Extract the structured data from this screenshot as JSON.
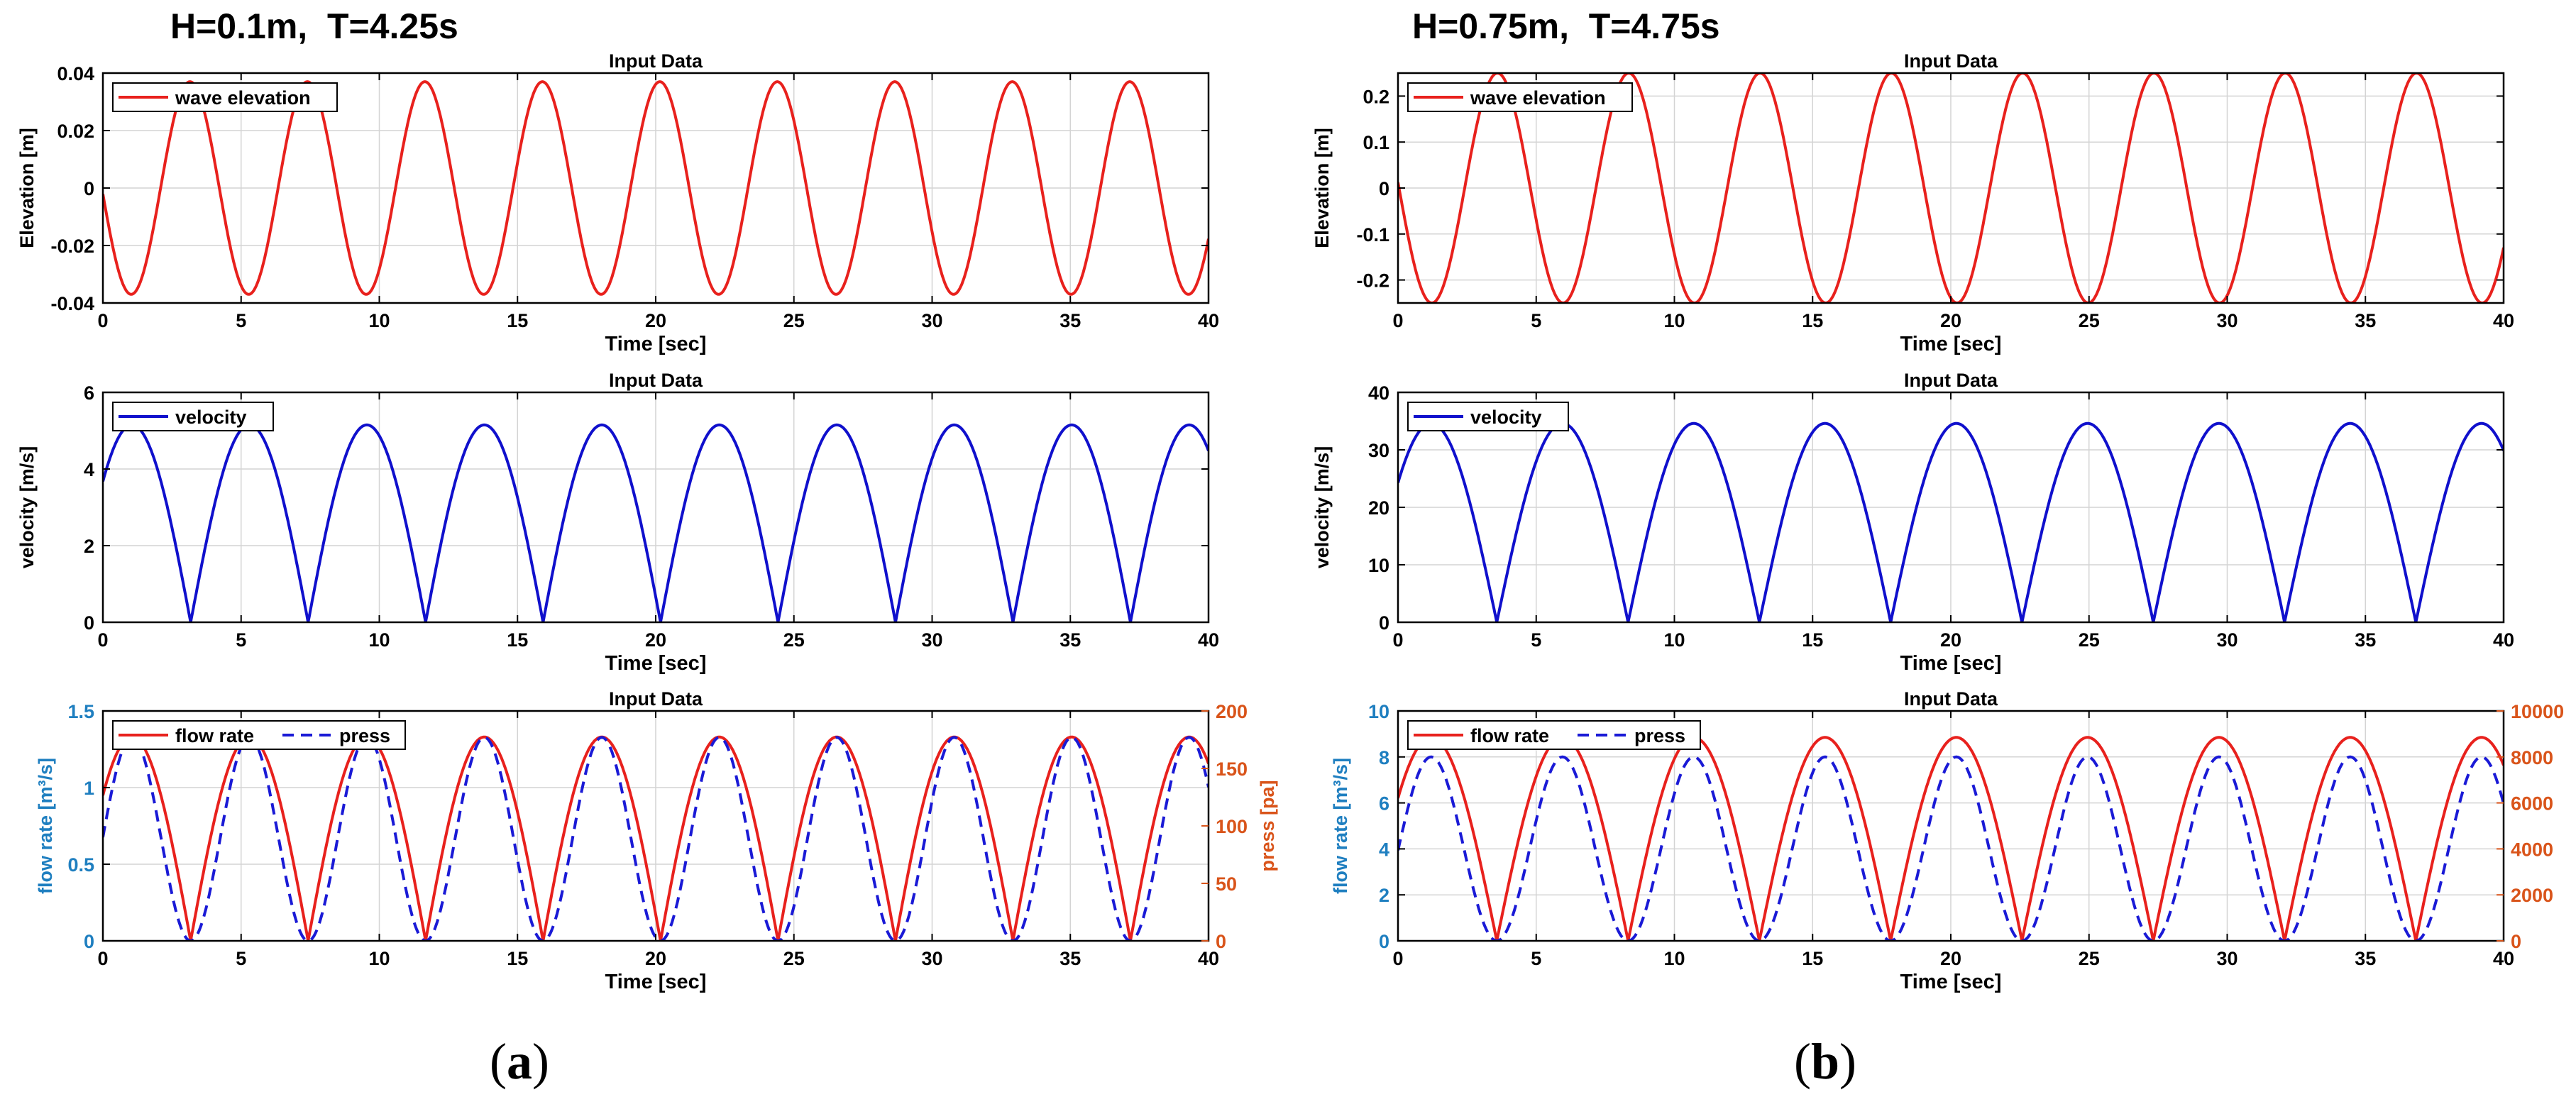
{
  "panels": [
    {
      "id": "a",
      "heading": "H=0.1m,  T=4.25s",
      "label": "a"
    },
    {
      "id": "b",
      "heading": "H=0.75m,  T=4.75s",
      "label": "b"
    }
  ],
  "colors": {
    "wave": "#e8211d",
    "velocity": "#1010cc",
    "flow": "#e8211d",
    "press": "#1a1ad6",
    "left_axis_label": "#1f7fc0",
    "right_axis": "#d9541a",
    "grid": "#d4d4d4"
  },
  "chart_data": [
    {
      "panel": "a",
      "row": 1,
      "type": "line",
      "title": "Input Data",
      "xlabel": "Time [sec]",
      "ylabel": "Elevation [m]",
      "xlim": [
        0,
        40
      ],
      "ylim": [
        -0.04,
        0.04
      ],
      "xticks": [
        0,
        5,
        10,
        15,
        20,
        25,
        30,
        35,
        40
      ],
      "xtick_labels": [
        "0",
        "5",
        "10",
        "15",
        "20",
        "25",
        "30",
        "35",
        "40"
      ],
      "yticks": [
        -0.04,
        -0.02,
        0,
        0.02,
        0.04
      ],
      "ytick_labels": [
        "-0.04",
        "-0.02",
        "0",
        "0.02",
        "0.04"
      ],
      "legend": [
        "wave elevation"
      ],
      "legend_position": "top-left",
      "series": [
        {
          "name": "wave elevation",
          "kind": "sine",
          "amplitude": 0.037,
          "period_s": 4.25,
          "first_peak_s": 3.15,
          "style": "solid"
        }
      ]
    },
    {
      "panel": "a",
      "row": 2,
      "type": "line",
      "title": "Input Data",
      "xlabel": "Time [sec]",
      "ylabel": "velocity [m/s]",
      "xlim": [
        0,
        40
      ],
      "ylim": [
        0,
        6
      ],
      "xticks": [
        0,
        5,
        10,
        15,
        20,
        25,
        30,
        35,
        40
      ],
      "xtick_labels": [
        "0",
        "5",
        "10",
        "15",
        "20",
        "25",
        "30",
        "35",
        "40"
      ],
      "yticks": [
        0,
        2,
        4,
        6
      ],
      "ytick_labels": [
        "0",
        "2",
        "4",
        "6"
      ],
      "legend": [
        "velocity"
      ],
      "legend_position": "top-left",
      "series": [
        {
          "name": "velocity",
          "kind": "abs-sine",
          "amplitude": 5.15,
          "period_s": 4.25,
          "first_peak_s": 1.05,
          "style": "solid"
        }
      ]
    },
    {
      "panel": "a",
      "row": 3,
      "type": "line",
      "title": "Input Data",
      "xlabel": "Time [sec]",
      "ylabel": "flow rate [m³/s]",
      "ylabel_right": "press [pa]",
      "xlim": [
        0,
        40
      ],
      "ylim": [
        0,
        1.5
      ],
      "ylim_right": [
        0,
        200
      ],
      "xticks": [
        0,
        5,
        10,
        15,
        20,
        25,
        30,
        35,
        40
      ],
      "xtick_labels": [
        "0",
        "5",
        "10",
        "15",
        "20",
        "25",
        "30",
        "35",
        "40"
      ],
      "yticks": [
        0,
        0.5,
        1,
        1.5
      ],
      "ytick_labels": [
        "0",
        "0.5",
        "1",
        "1.5"
      ],
      "yticks_right": [
        0,
        50,
        100,
        150,
        200
      ],
      "ytick_labels_right": [
        "0",
        "50",
        "100",
        "150",
        "200"
      ],
      "legend": [
        "flow rate",
        "press"
      ],
      "legend_position": "top-left",
      "series": [
        {
          "name": "flow rate",
          "kind": "abs-sine",
          "amplitude": 1.33,
          "period_s": 4.25,
          "first_peak_s": 1.05,
          "axis": "left",
          "style": "solid"
        },
        {
          "name": "press",
          "kind": "sine-squared",
          "amplitude": 177,
          "period_s": 4.25,
          "first_peak_s": 1.05,
          "axis": "right",
          "style": "dashed"
        }
      ]
    },
    {
      "panel": "b",
      "row": 1,
      "type": "line",
      "title": "Input Data",
      "xlabel": "Time [sec]",
      "ylabel": "Elevation [m]",
      "xlim": [
        0,
        40
      ],
      "ylim": [
        -0.25,
        0.25
      ],
      "xticks": [
        0,
        5,
        10,
        15,
        20,
        25,
        30,
        35,
        40
      ],
      "xtick_labels": [
        "0",
        "5",
        "10",
        "15",
        "20",
        "25",
        "30",
        "35",
        "40"
      ],
      "yticks": [
        -0.2,
        -0.1,
        0,
        0.1,
        0.2
      ],
      "ytick_labels": [
        "-0.2",
        "-0.1",
        "0",
        "0.1",
        "0.2"
      ],
      "legend": [
        "wave elevation"
      ],
      "legend_position": "top-left",
      "series": [
        {
          "name": "wave elevation",
          "kind": "sine",
          "amplitude": 0.25,
          "period_s": 4.75,
          "first_peak_s": 3.6,
          "style": "solid"
        }
      ]
    },
    {
      "panel": "b",
      "row": 2,
      "type": "line",
      "title": "Input Data",
      "xlabel": "Time [sec]",
      "ylabel": "velocity [m/s]",
      "xlim": [
        0,
        40
      ],
      "ylim": [
        0,
        40
      ],
      "xticks": [
        0,
        5,
        10,
        15,
        20,
        25,
        30,
        35,
        40
      ],
      "xtick_labels": [
        "0",
        "5",
        "10",
        "15",
        "20",
        "25",
        "30",
        "35",
        "40"
      ],
      "yticks": [
        0,
        10,
        20,
        30,
        40
      ],
      "ytick_labels": [
        "0",
        "10",
        "20",
        "30",
        "40"
      ],
      "legend": [
        "velocity"
      ],
      "legend_position": "top-left",
      "series": [
        {
          "name": "velocity",
          "kind": "abs-sine",
          "amplitude": 34.6,
          "period_s": 4.75,
          "first_peak_s": 1.2,
          "style": "solid"
        }
      ]
    },
    {
      "panel": "b",
      "row": 3,
      "type": "line",
      "title": "Input Data",
      "xlabel": "Time [sec]",
      "ylabel": "flow rate [m³/s]",
      "ylabel_right": "",
      "xlim": [
        0,
        40
      ],
      "ylim": [
        0,
        10
      ],
      "ylim_right": [
        0,
        10000
      ],
      "xticks": [
        0,
        5,
        10,
        15,
        20,
        25,
        30,
        35,
        40
      ],
      "xtick_labels": [
        "0",
        "5",
        "10",
        "15",
        "20",
        "25",
        "30",
        "35",
        "40"
      ],
      "yticks": [
        0,
        2,
        4,
        6,
        8,
        10
      ],
      "ytick_labels": [
        "0",
        "2",
        "4",
        "6",
        "8",
        "10"
      ],
      "yticks_right": [
        0,
        2000,
        4000,
        6000,
        8000,
        10000
      ],
      "ytick_labels_right": [
        "0",
        "2000",
        "4000",
        "6000",
        "8000",
        "10000"
      ],
      "legend": [
        "flow rate",
        "press"
      ],
      "legend_position": "top-left",
      "series": [
        {
          "name": "flow rate",
          "kind": "abs-sine",
          "amplitude": 8.85,
          "period_s": 4.75,
          "first_peak_s": 1.2,
          "axis": "left",
          "style": "solid"
        },
        {
          "name": "press",
          "kind": "sine-squared",
          "amplitude": 8000,
          "period_s": 4.75,
          "first_peak_s": 1.2,
          "axis": "right",
          "style": "dashed"
        }
      ]
    }
  ]
}
